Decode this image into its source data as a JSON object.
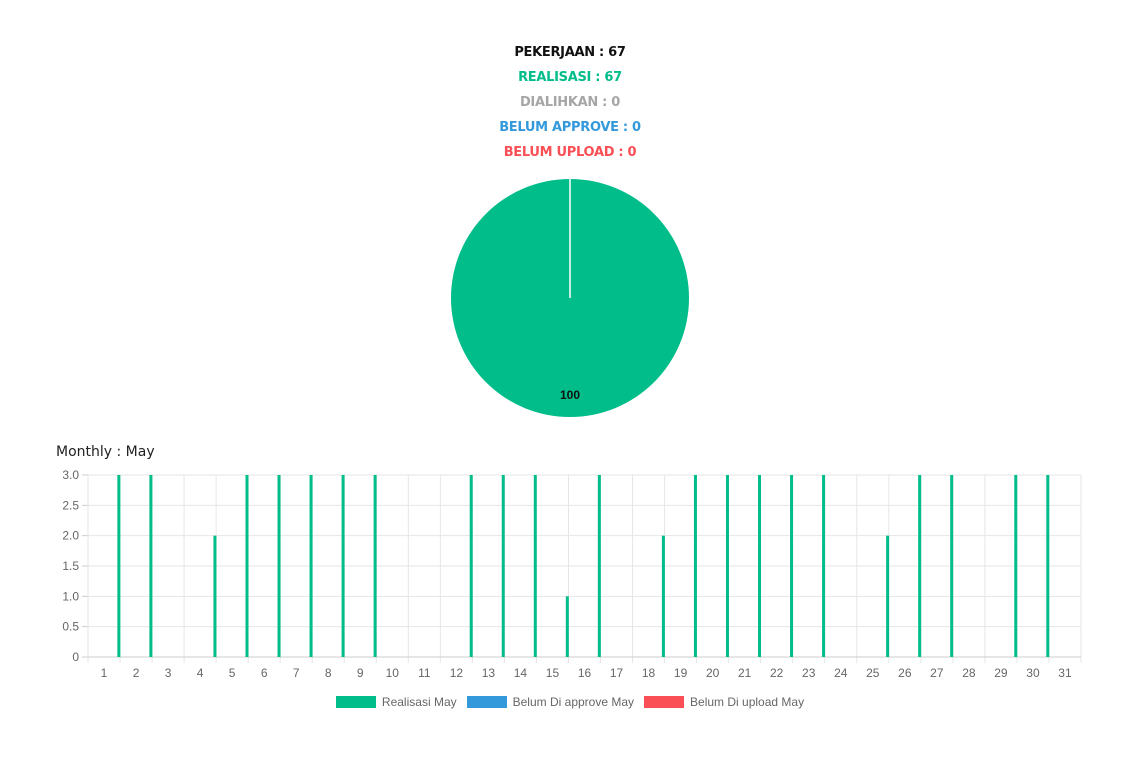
{
  "summary": {
    "pekerjaan": "PEKERJAAN : 67",
    "realisasi": "REALISASI : 67",
    "dialihkan": "DIALIHKAN : 0",
    "belum_approve": "BELUM APPROVE : 0",
    "belum_upload": "BELUM UPLOAD : 0"
  },
  "colors": {
    "realisasi": "#00bd8a",
    "belum_approve": "#3499db",
    "belum_upload": "#fa4f55",
    "dialihkan": "#a6a6a6",
    "grid": "#e6e6e6",
    "axis_text": "#666666"
  },
  "monthly_title": "Monthly : May",
  "chart_data": [
    {
      "type": "pie",
      "slices": [
        {
          "label": "Realisasi",
          "value": 100,
          "color": "#00bd8a",
          "data_label": "100"
        }
      ]
    },
    {
      "type": "bar",
      "categories": [
        "1",
        "2",
        "3",
        "4",
        "5",
        "6",
        "7",
        "8",
        "9",
        "10",
        "11",
        "12",
        "13",
        "14",
        "15",
        "16",
        "17",
        "18",
        "19",
        "20",
        "21",
        "22",
        "23",
        "24",
        "25",
        "26",
        "27",
        "28",
        "29",
        "30",
        "31"
      ],
      "series": [
        {
          "name": "Realisasi May",
          "color": "#00bd8a",
          "values": [
            0,
            3,
            3,
            0,
            2,
            3,
            3,
            3,
            3,
            3,
            0,
            0,
            3,
            3,
            3,
            1,
            3,
            0,
            2,
            3,
            3,
            3,
            3,
            3,
            0,
            2,
            3,
            3,
            0,
            3,
            3
          ]
        },
        {
          "name": "Belum Di approve May",
          "color": "#3499db",
          "values": [
            0,
            0,
            0,
            0,
            0,
            0,
            0,
            0,
            0,
            0,
            0,
            0,
            0,
            0,
            0,
            0,
            0,
            0,
            0,
            0,
            0,
            0,
            0,
            0,
            0,
            0,
            0,
            0,
            0,
            0,
            0
          ]
        },
        {
          "name": "Belum Di upload May",
          "color": "#fa4f55",
          "values": [
            0,
            0,
            0,
            0,
            0,
            0,
            0,
            0,
            0,
            0,
            0,
            0,
            0,
            0,
            0,
            0,
            0,
            0,
            0,
            0,
            0,
            0,
            0,
            0,
            0,
            0,
            0,
            0,
            0,
            0,
            0
          ]
        }
      ],
      "yticks": [
        "0",
        "0.5",
        "1.0",
        "1.5",
        "2.0",
        "2.5",
        "3.0"
      ],
      "ylim": [
        0,
        3
      ],
      "grid": true,
      "legend_position": "bottom"
    }
  ]
}
